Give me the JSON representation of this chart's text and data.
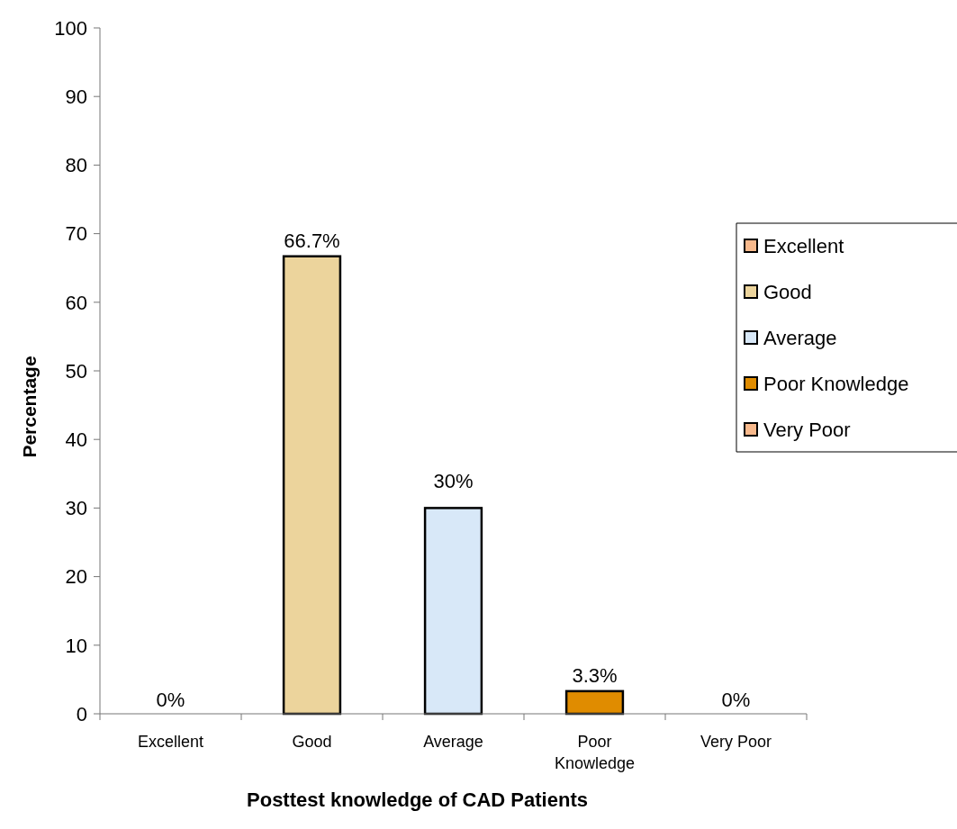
{
  "chart_data": {
    "type": "bar",
    "xlabel": "Posttest knowledge of CAD Patients",
    "ylabel": "Percentage",
    "categories": [
      "Excellent",
      "Good",
      "Average",
      "Poor Knowledge",
      "Very Poor"
    ],
    "series": [
      {
        "name": "Excellent",
        "color": "#f8b98c",
        "values": [
          0,
          null,
          null,
          null,
          null
        ],
        "value_labels": [
          "0%",
          null,
          null,
          null,
          null
        ]
      },
      {
        "name": "Good",
        "color": "#ecd49c",
        "values": [
          null,
          66.7,
          null,
          null,
          null
        ],
        "value_labels": [
          null,
          "66.7%",
          null,
          null,
          null
        ]
      },
      {
        "name": "Average",
        "color": "#d8e8f8",
        "values": [
          null,
          null,
          30,
          null,
          null
        ],
        "value_labels": [
          null,
          null,
          "30%",
          null,
          null
        ]
      },
      {
        "name": "Poor Knowledge",
        "color": "#e08c00",
        "values": [
          null,
          null,
          null,
          3.3,
          null
        ],
        "value_labels": [
          null,
          null,
          null,
          "3.3%",
          null
        ]
      },
      {
        "name": "Very Poor",
        "color": "#f8b98c",
        "values": [
          null,
          null,
          null,
          null,
          0
        ],
        "value_labels": [
          null,
          null,
          null,
          null,
          "0%"
        ]
      }
    ],
    "ylim": [
      0,
      100
    ],
    "yticks": [
      0,
      10,
      20,
      30,
      40,
      50,
      60,
      70,
      80,
      90,
      100
    ],
    "legend": "right"
  }
}
